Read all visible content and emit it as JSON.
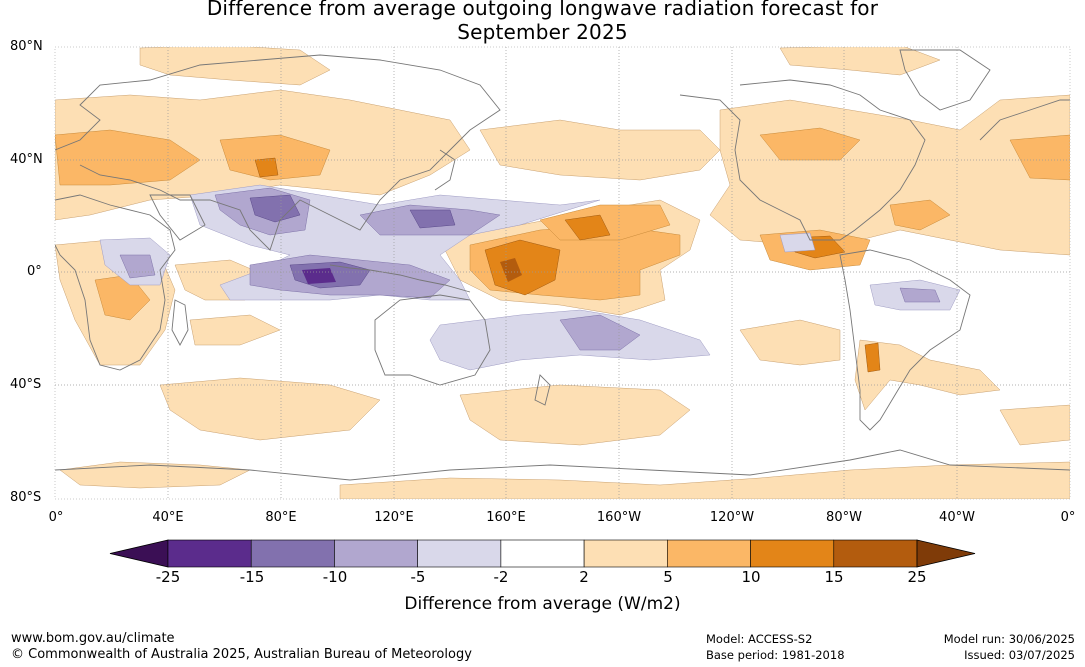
{
  "title_line1": "Difference from average outgoing longwave radiation forecast for",
  "title_line2": "September 2025",
  "lat_labels": [
    "80°N",
    "40°N",
    "0°",
    "40°S",
    "80°S"
  ],
  "lon_labels": [
    "0°",
    "40°E",
    "80°E",
    "120°E",
    "160°E",
    "160°W",
    "120°W",
    "80°W",
    "40°W",
    "0°"
  ],
  "colorbar": {
    "title": "Difference from average (W/m2)",
    "ticks": [
      "-25",
      "-15",
      "-10",
      "-5",
      "-2",
      "2",
      "5",
      "10",
      "15",
      "25"
    ],
    "colors": [
      "#3b0f55",
      "#5b2c8c",
      "#8271ae",
      "#b1a7cf",
      "#d9d8ea",
      "#ffffff",
      "#fddfb4",
      "#fbb766",
      "#e38518",
      "#b35c0e",
      "#7f3b08"
    ]
  },
  "footer": {
    "url": "www.bom.gov.au/climate",
    "copyright": "© Commonwealth of Australia 2025, Australian Bureau of Meteorology",
    "model": "Model: ACCESS-S2",
    "base_period": "Base period: 1981-2018",
    "model_run": "Model run: 30/06/2025",
    "issued": "Issued: 03/07/2025"
  }
}
